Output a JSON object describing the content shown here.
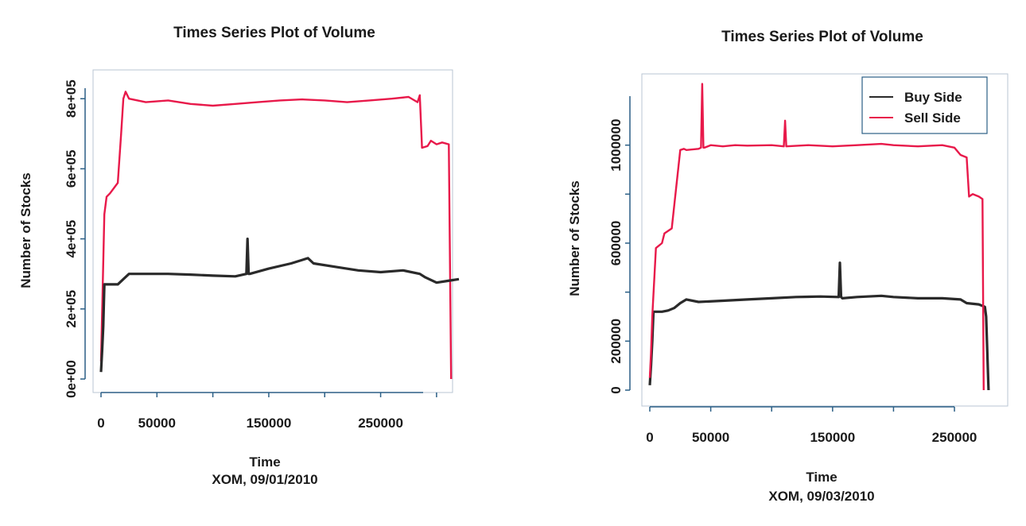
{
  "colors": {
    "buy": "#2a2a2a",
    "sell": "#e8194a",
    "axis": "#2b5f86"
  },
  "chart_data": [
    {
      "type": "line",
      "title": "Times Series Plot of Volume",
      "xlabel": "Time",
      "subtitle": "XOM, 09/01/2010",
      "ylabel": "Number of Stocks",
      "xlim": [
        0,
        320000
      ],
      "ylim": [
        0,
        830000
      ],
      "x_ticks": [
        0,
        50000,
        100000,
        150000,
        200000,
        250000,
        300000
      ],
      "x_tick_labels": [
        "0",
        "50000",
        "",
        "150000",
        "",
        "250000",
        ""
      ],
      "y_ticks": [
        0,
        200000,
        400000,
        600000,
        800000
      ],
      "y_tick_labels": [
        "0e+00",
        "2e+05",
        "4e+05",
        "6e+05",
        "8e+05"
      ],
      "legend": null,
      "series": [
        {
          "color_key": "sell",
          "x": [
            0,
            3000,
            5000,
            8000,
            15000,
            18000,
            20000,
            22000,
            25000,
            40000,
            60000,
            80000,
            100000,
            120000,
            140000,
            160000,
            180000,
            200000,
            220000,
            240000,
            260000,
            275000,
            283000,
            285000,
            287000,
            292000,
            295000,
            300000,
            305000,
            311000,
            313000
          ],
          "y": [
            50000,
            470000,
            520000,
            530000,
            560000,
            700000,
            800000,
            820000,
            800000,
            790000,
            795000,
            785000,
            780000,
            785000,
            790000,
            795000,
            798000,
            795000,
            790000,
            795000,
            800000,
            805000,
            790000,
            810000,
            660000,
            665000,
            680000,
            670000,
            675000,
            670000,
            0
          ]
        },
        {
          "color_key": "buy",
          "x": [
            0,
            1000,
            2000,
            3000,
            5000,
            10000,
            15000,
            20000,
            25000,
            40000,
            60000,
            80000,
            100000,
            120000,
            130000,
            131000,
            132000,
            133000,
            150000,
            170000,
            180000,
            185000,
            190000,
            210000,
            230000,
            250000,
            270000,
            285000,
            290000,
            300000,
            310000,
            320000
          ],
          "y": [
            20000,
            80000,
            150000,
            270000,
            270000,
            270000,
            270000,
            285000,
            300000,
            300000,
            300000,
            298000,
            295000,
            293000,
            300000,
            400000,
            300000,
            300000,
            315000,
            330000,
            340000,
            345000,
            330000,
            320000,
            310000,
            305000,
            310000,
            300000,
            290000,
            275000,
            280000,
            285000
          ]
        }
      ]
    },
    {
      "type": "line",
      "title": "Times Series Plot of Volume",
      "xlabel": "Time",
      "subtitle": "XOM, 09/03/2010",
      "ylabel": "Number of Stocks",
      "xlim": [
        0,
        280000
      ],
      "ylim": [
        0,
        1200000
      ],
      "x_ticks": [
        0,
        50000,
        100000,
        150000,
        200000,
        250000
      ],
      "x_tick_labels": [
        "0",
        "50000",
        "",
        "150000",
        "",
        "250000"
      ],
      "y_ticks": [
        0,
        200000,
        400000,
        600000,
        800000,
        1000000
      ],
      "y_tick_labels": [
        "0",
        "200000",
        "",
        "600000",
        "",
        "1000000"
      ],
      "legend": {
        "position": "top-right",
        "entries": [
          "Buy Side",
          "Sell Side"
        ]
      },
      "series": [
        {
          "name": "Buy Side",
          "color_key": "buy",
          "x": [
            0,
            1000,
            2000,
            3000,
            5000,
            10000,
            15000,
            20000,
            25000,
            30000,
            40000,
            60000,
            80000,
            100000,
            120000,
            140000,
            155000,
            156000,
            157000,
            158000,
            170000,
            190000,
            200000,
            220000,
            240000,
            255000,
            260000,
            270000,
            275000,
            276000,
            278000
          ],
          "y": [
            20000,
            100000,
            200000,
            320000,
            320000,
            320000,
            325000,
            335000,
            355000,
            370000,
            360000,
            365000,
            370000,
            375000,
            380000,
            382000,
            380000,
            520000,
            380000,
            375000,
            380000,
            385000,
            380000,
            375000,
            375000,
            370000,
            355000,
            350000,
            340000,
            300000,
            0
          ]
        },
        {
          "name": "Sell Side",
          "color_key": "sell",
          "x": [
            0,
            1000,
            2000,
            5000,
            10000,
            12000,
            15000,
            18000,
            20000,
            25000,
            28000,
            30000,
            40000,
            42000,
            43000,
            44000,
            45000,
            50000,
            60000,
            70000,
            80000,
            100000,
            110000,
            111000,
            112000,
            130000,
            150000,
            170000,
            190000,
            200000,
            220000,
            240000,
            250000,
            255000,
            260000,
            262000,
            265000,
            270000,
            273000,
            274000
          ],
          "y": [
            50000,
            150000,
            300000,
            580000,
            600000,
            640000,
            650000,
            660000,
            750000,
            980000,
            985000,
            980000,
            985000,
            990000,
            1250000,
            990000,
            990000,
            1000000,
            995000,
            1000000,
            998000,
            1000000,
            995000,
            1100000,
            995000,
            1000000,
            995000,
            1000000,
            1005000,
            1000000,
            995000,
            1000000,
            990000,
            960000,
            950000,
            790000,
            800000,
            790000,
            780000,
            0
          ]
        }
      ]
    }
  ]
}
